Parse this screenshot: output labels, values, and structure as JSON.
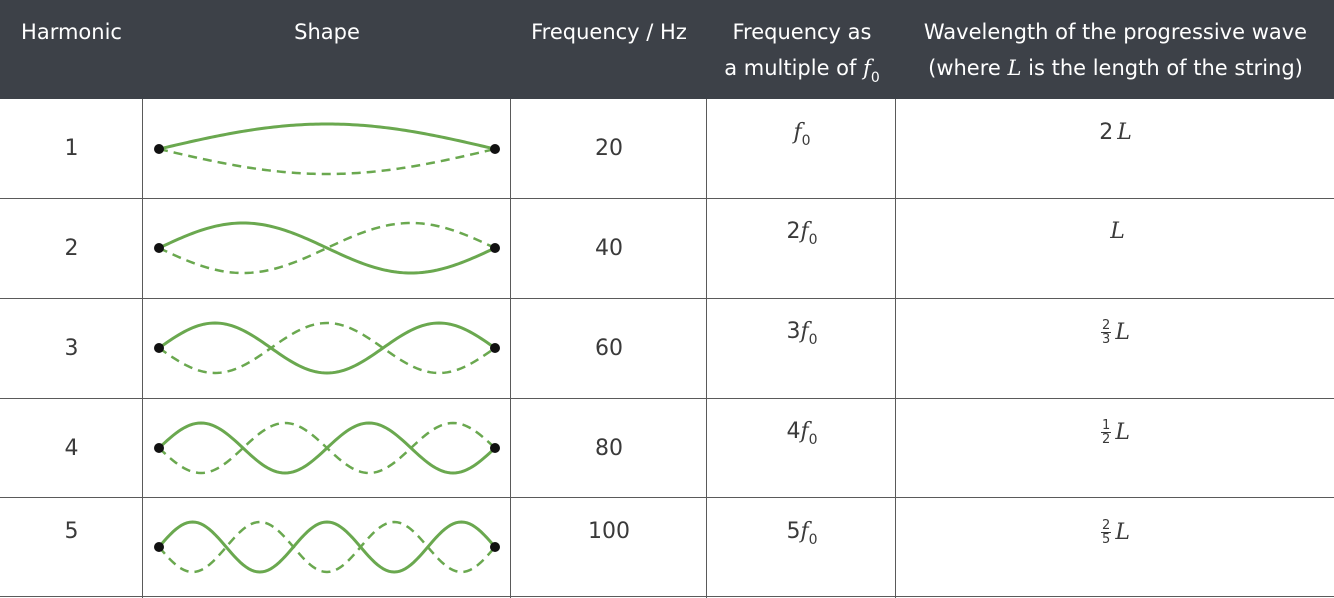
{
  "headers": {
    "harmonic": "Harmonic",
    "shape": "Shape",
    "frequency": "Frequency / Hz",
    "multiple_line1": "Frequency as",
    "multiple_line2_prefix": "a multiple of ",
    "multiple_line2_var": "f",
    "multiple_line2_sub": "0",
    "wavelength_line1": "Wavelength of the progressive wave",
    "wavelength_line2_prefix": "(where ",
    "wavelength_line2_var": "L",
    "wavelength_line2_suffix": " is the length of the string)"
  },
  "rows": [
    {
      "harmonic": "1",
      "loops": 1,
      "frequency": "20",
      "mult_coef": "",
      "mult_var": "f",
      "mult_sub": "0",
      "wl_whole": "2",
      "wl_num": "",
      "wl_den": "",
      "wl_var": "L"
    },
    {
      "harmonic": "2",
      "loops": 2,
      "frequency": "40",
      "mult_coef": "2",
      "mult_var": "f",
      "mult_sub": "0",
      "wl_whole": "",
      "wl_num": "",
      "wl_den": "",
      "wl_var": "L"
    },
    {
      "harmonic": "3",
      "loops": 3,
      "frequency": "60",
      "mult_coef": "3",
      "mult_var": "f",
      "mult_sub": "0",
      "wl_whole": "",
      "wl_num": "2",
      "wl_den": "3",
      "wl_var": "L"
    },
    {
      "harmonic": "4",
      "loops": 4,
      "frequency": "80",
      "mult_coef": "4",
      "mult_var": "f",
      "mult_sub": "0",
      "wl_whole": "",
      "wl_num": "1",
      "wl_den": "2",
      "wl_var": "L"
    },
    {
      "harmonic": "5",
      "loops": 5,
      "frequency": "100",
      "mult_coef": "5",
      "mult_var": "f",
      "mult_sub": "0",
      "wl_whole": "",
      "wl_num": "2",
      "wl_den": "5",
      "wl_var": "L"
    }
  ],
  "colors": {
    "header_bg": "#3d4148",
    "wave": "#6aa84f",
    "node": "#111111"
  }
}
